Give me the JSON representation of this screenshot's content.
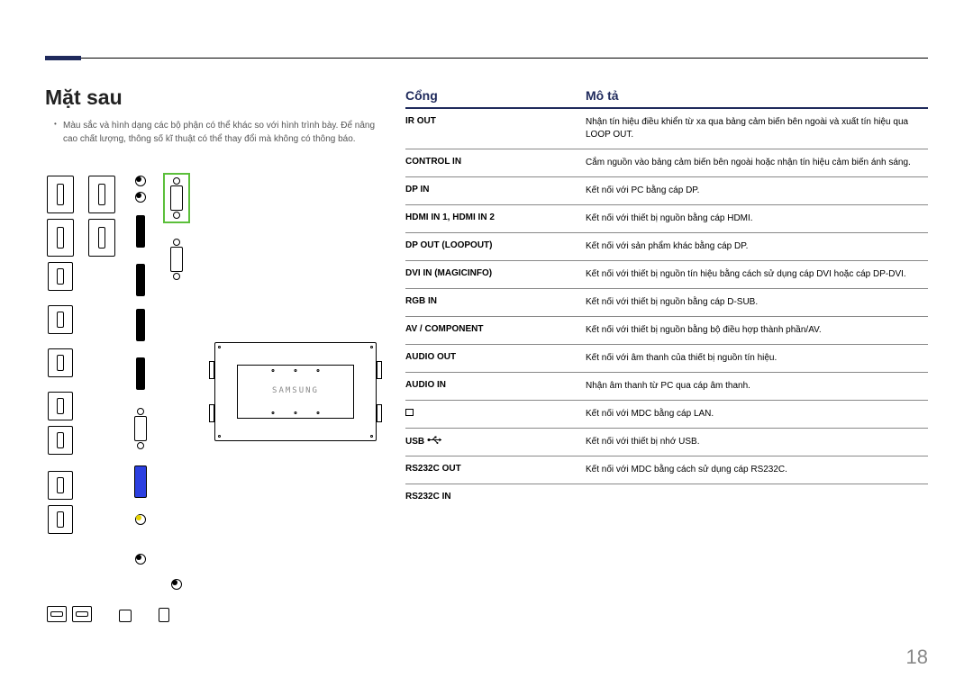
{
  "section_title": "Mặt sau",
  "note": "Màu sắc và hình dạng các bộ phận có thể khác so với hình trình bày. Để nâng cao chất lượng, thông số kĩ thuật có thể thay đổi mà không có thông báo.",
  "table_header": {
    "port": "Cổng",
    "desc": "Mô tả"
  },
  "rows": [
    {
      "port": "IR OUT",
      "desc": "Nhận tín hiệu điều khiển từ xa qua bảng cảm biến bên ngoài và xuất tín hiệu qua LOOP OUT."
    },
    {
      "port": "CONTROL IN",
      "desc": "Cắm nguồn vào bảng cảm biến bên ngoài hoặc nhận tín hiệu cảm biến ánh sáng."
    },
    {
      "port": "DP IN",
      "desc": "Kết nối với PC bằng cáp DP."
    },
    {
      "port": "HDMI IN 1, HDMI IN 2",
      "desc": "Kết nối với thiết bị nguồn bằng cáp HDMI."
    },
    {
      "port": "DP OUT (LOOPOUT)",
      "desc": "Kết nối với sản phẩm khác bằng cáp DP."
    },
    {
      "port": "DVI IN (MAGICINFO)",
      "desc": "Kết nối với thiết bị nguồn tín hiệu bằng cách sử dụng cáp DVI hoặc cáp DP-DVI."
    },
    {
      "port": "RGB IN",
      "desc": "Kết nối với thiết bị nguồn bằng cáp D-SUB."
    },
    {
      "port": "AV / COMPONENT",
      "desc": "Kết nối với thiết bị nguồn bằng bộ điều hợp thành phần/AV."
    },
    {
      "port": "AUDIO OUT",
      "desc": "Kết nối với âm thanh của thiết bị nguồn tín hiệu."
    },
    {
      "port": "AUDIO IN",
      "desc": "Nhận âm thanh từ PC qua cáp âm thanh."
    },
    {
      "port": "__LAN__",
      "desc": "Kết nối với MDC bằng cáp LAN."
    },
    {
      "port": "USB __USB__",
      "desc": "Kết nối với thiết bị nhớ USB."
    },
    {
      "port": "RS232C OUT",
      "desc": "Kết nối với MDC bằng cách sử dụng cáp RS232C."
    },
    {
      "port": "RS232C IN",
      "desc": ""
    }
  ],
  "panel_logo": "SAMSUNG",
  "page_number": "18",
  "colors": {
    "accent": "#1f2a5c",
    "highlight_green": "#5bbf3a",
    "fill_blue": "#2b3fe0",
    "fill_yellow": "#e6d200",
    "page_num": "#888888"
  }
}
